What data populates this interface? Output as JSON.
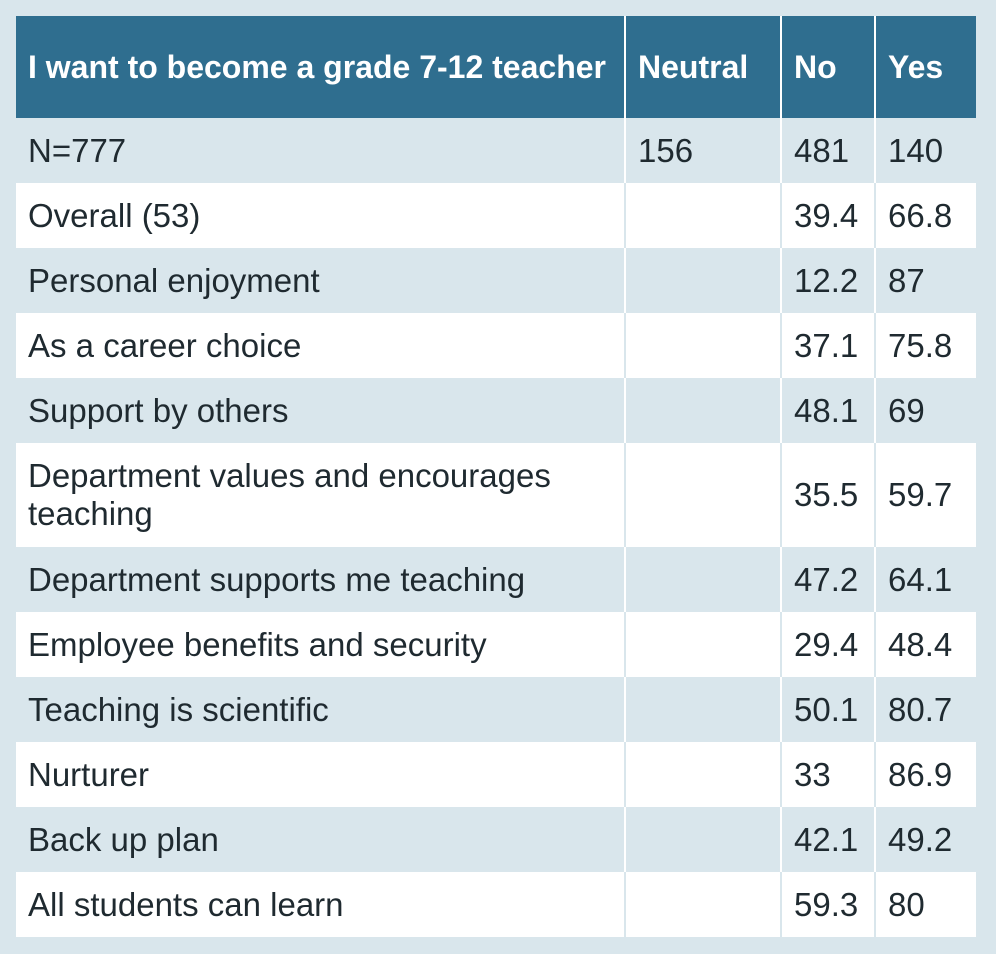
{
  "table": {
    "headers": [
      "I want to become a grade 7-12 teacher",
      "Neutral",
      "No",
      "Yes"
    ],
    "rows": [
      {
        "label": "N=777",
        "neutral": "156",
        "no": "481",
        "yes": "140"
      },
      {
        "label": "Overall (53)",
        "neutral": "",
        "no": "39.4",
        "yes": "66.8"
      },
      {
        "label": "Personal enjoyment",
        "neutral": "",
        "no": "12.2",
        "yes": "87"
      },
      {
        "label": "As a career choice",
        "neutral": "",
        "no": "37.1",
        "yes": "75.8"
      },
      {
        "label": "Support by others",
        "neutral": "",
        "no": "48.1",
        "yes": "69"
      },
      {
        "label": "Department values and encourages teaching",
        "neutral": "",
        "no": "35.5",
        "yes": "59.7"
      },
      {
        "label": "Department supports me teaching",
        "neutral": "",
        "no": "47.2",
        "yes": "64.1"
      },
      {
        "label": "Employee benefits and security",
        "neutral": "",
        "no": "29.4",
        "yes": "48.4"
      },
      {
        "label": "Teaching is scientific",
        "neutral": "",
        "no": "50.1",
        "yes": "80.7"
      },
      {
        "label": "Nurturer",
        "neutral": "",
        "no": "33",
        "yes": "86.9"
      },
      {
        "label": "Back up plan",
        "neutral": "",
        "no": "42.1",
        "yes": "49.2"
      },
      {
        "label": "All students can learn",
        "neutral": "",
        "no": "59.3",
        "yes": "80"
      }
    ]
  }
}
